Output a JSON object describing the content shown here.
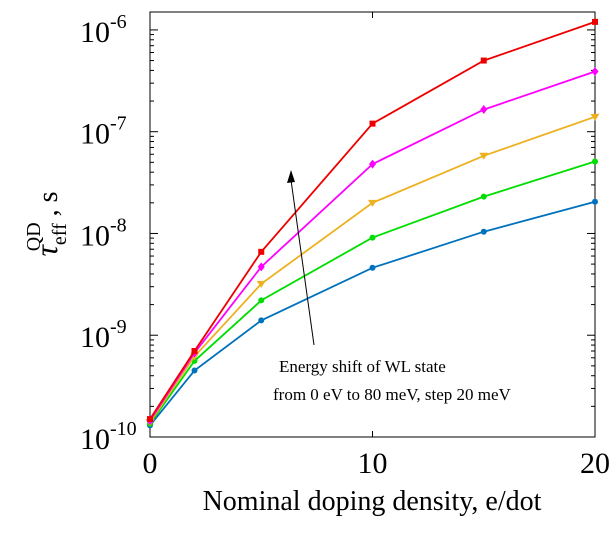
{
  "chart_data": {
    "type": "line",
    "x_scale": "linear",
    "y_scale": "log",
    "xlabel": "Nominal doping density, e/dot",
    "ylabel": {
      "symbol": "τ",
      "superscript": "QD",
      "subscript": "eff",
      "suffix": ", s"
    },
    "xlim": [
      0,
      20
    ],
    "ylim": [
      1e-10,
      1.5e-06
    ],
    "x_ticks": [
      0,
      10,
      20
    ],
    "x_tick_labels": [
      "0",
      "10",
      "20"
    ],
    "y_ticks": [
      {
        "value": 1e-10,
        "base": "10",
        "exponent": "-10"
      },
      {
        "value": 1e-09,
        "base": "10",
        "exponent": "-9"
      },
      {
        "value": 1e-08,
        "base": "10",
        "exponent": "-8"
      },
      {
        "value": 1e-07,
        "base": "10",
        "exponent": "-7"
      },
      {
        "value": 1e-06,
        "base": "10",
        "exponent": "-6"
      }
    ],
    "grid": false,
    "x": [
      0,
      2,
      5,
      10,
      15,
      20
    ],
    "series": [
      {
        "color": "#0072BD",
        "marker": "circle",
        "values": [
          1.3e-10,
          4.5e-10,
          1.4e-09,
          4.6e-09,
          1.04e-08,
          2.05e-08
        ]
      },
      {
        "color": "#00DD00",
        "marker": "circle",
        "values": [
          1.35e-10,
          5.6e-10,
          2.2e-09,
          9.1e-09,
          2.3e-08,
          5.1e-08
        ]
      },
      {
        "color": "#EDB120",
        "marker": "triangle-down",
        "values": [
          1.4e-10,
          6.2e-10,
          3.2e-09,
          2e-08,
          5.8e-08,
          1.4e-07
        ]
      },
      {
        "color": "#FF00FF",
        "marker": "diamond",
        "values": [
          1.45e-10,
          6.7e-10,
          4.7e-09,
          4.8e-08,
          1.65e-07,
          3.9e-07
        ]
      },
      {
        "color": "#EE0000",
        "marker": "square",
        "values": [
          1.5e-10,
          7e-10,
          6.6e-09,
          1.2e-07,
          5e-07,
          1.2e-06
        ]
      }
    ],
    "annotation": {
      "lines": [
        "Energy shift of WL state",
        "from 0 eV to 80 meV, step 20 meV"
      ],
      "arrow": "up"
    }
  }
}
